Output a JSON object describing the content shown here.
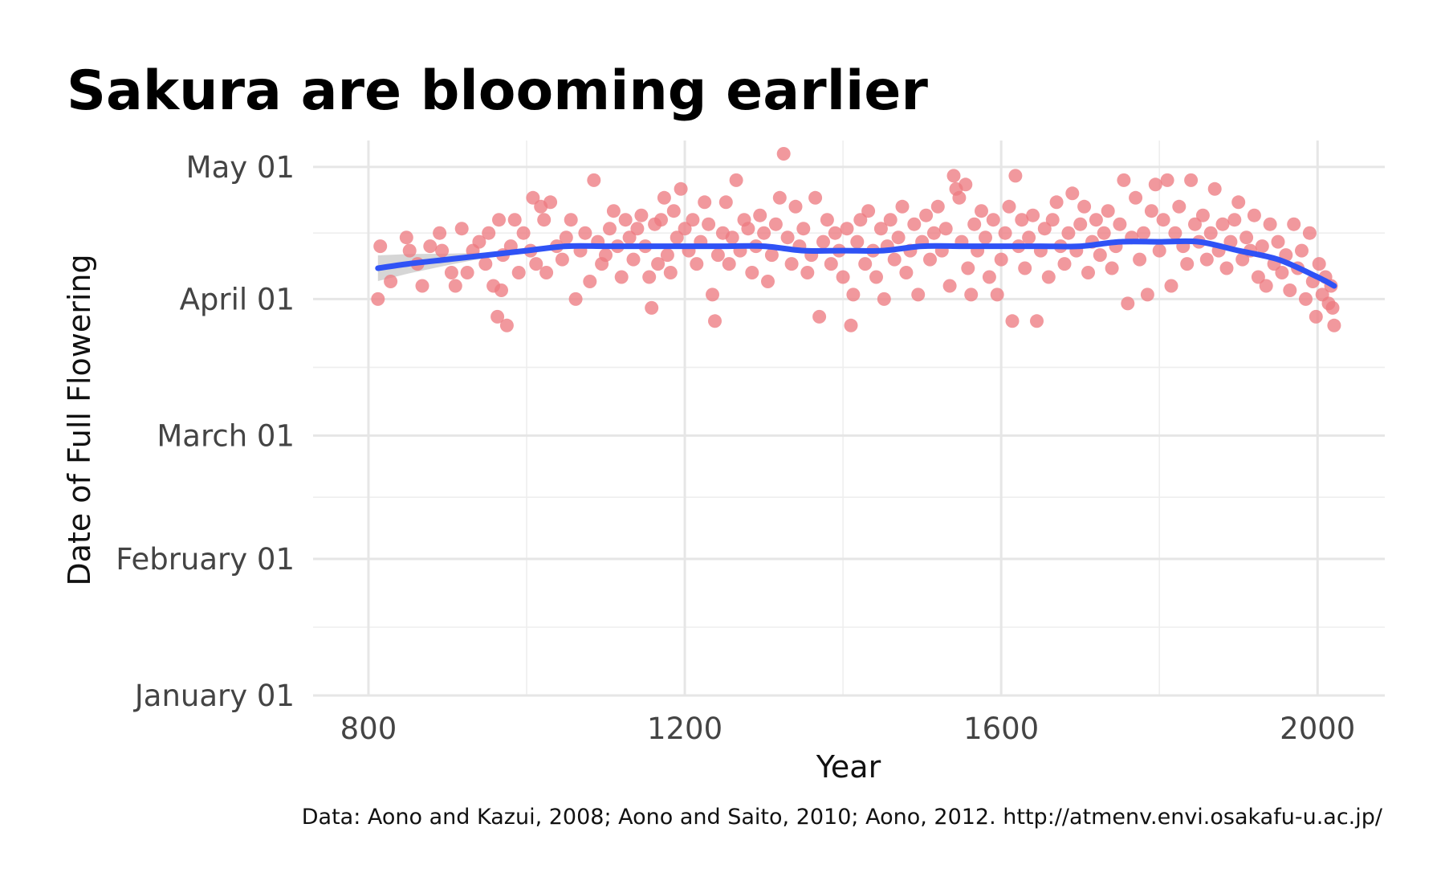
{
  "chart_data": {
    "type": "scatter",
    "title": "Sakura are blooming earlier",
    "xlabel": "Year",
    "ylabel": "Date of Full Flowering",
    "caption": "Data: Aono and Kazui, 2008; Aono and Saito, 2010; Aono, 2012. http://atmenv.envi.osakafu-u.ac.jp/",
    "xlim": [
      730,
      2085
    ],
    "ylim": [
      "2023-01-01",
      "2023-05-07"
    ],
    "x_ticks": [
      {
        "value": 800,
        "label": "800"
      },
      {
        "value": 1200,
        "label": "1200"
      },
      {
        "value": 1600,
        "label": "1600"
      },
      {
        "value": 2000,
        "label": "2000"
      }
    ],
    "y_ticks": [
      {
        "value": "2023-01-01",
        "label": "January 01"
      },
      {
        "value": "2023-02-01",
        "label": "February 01"
      },
      {
        "value": "2023-03-01",
        "label": "March 01"
      },
      {
        "value": "2023-04-01",
        "label": "April 01"
      },
      {
        "value": "2023-05-01",
        "label": "May 01"
      }
    ],
    "grid": true,
    "point_color": "#ED7B81",
    "smooth_color": "#2F52F5",
    "band_color": "#C8C8C8",
    "smooth": {
      "x": [
        812,
        850,
        900,
        950,
        1000,
        1050,
        1100,
        1150,
        1200,
        1250,
        1300,
        1350,
        1400,
        1450,
        1500,
        1550,
        1600,
        1650,
        1700,
        1750,
        1800,
        1850,
        1900,
        1950,
        2000,
        2021
      ],
      "y": [
        "2023-04-08",
        "2023-04-09",
        "2023-04-10",
        "2023-04-11",
        "2023-04-12",
        "2023-04-13",
        "2023-04-13",
        "2023-04-13",
        "2023-04-13",
        "2023-04-13",
        "2023-04-13",
        "2023-04-12",
        "2023-04-12",
        "2023-04-12",
        "2023-04-13",
        "2023-04-13",
        "2023-04-13",
        "2023-04-13",
        "2023-04-13",
        "2023-04-14",
        "2023-04-14",
        "2023-04-14",
        "2023-04-12",
        "2023-04-10",
        "2023-04-06",
        "2023-04-04"
      ]
    },
    "points": [
      [
        812,
        "2023-04-01"
      ],
      [
        815,
        "2023-04-13"
      ],
      [
        828,
        "2023-04-05"
      ],
      [
        848,
        "2023-04-15"
      ],
      [
        852,
        "2023-04-12"
      ],
      [
        862,
        "2023-04-09"
      ],
      [
        868,
        "2023-04-04"
      ],
      [
        878,
        "2023-04-13"
      ],
      [
        890,
        "2023-04-16"
      ],
      [
        893,
        "2023-04-12"
      ],
      [
        905,
        "2023-04-07"
      ],
      [
        910,
        "2023-04-04"
      ],
      [
        918,
        "2023-04-17"
      ],
      [
        925,
        "2023-04-07"
      ],
      [
        932,
        "2023-04-12"
      ],
      [
        940,
        "2023-04-14"
      ],
      [
        948,
        "2023-04-09"
      ],
      [
        952,
        "2023-04-16"
      ],
      [
        958,
        "2023-04-04"
      ],
      [
        963,
        "2023-03-28"
      ],
      [
        965,
        "2023-04-19"
      ],
      [
        968,
        "2023-04-03"
      ],
      [
        970,
        "2023-04-11"
      ],
      [
        975,
        "2023-03-26"
      ],
      [
        980,
        "2023-04-13"
      ],
      [
        985,
        "2023-04-19"
      ],
      [
        990,
        "2023-04-07"
      ],
      [
        996,
        "2023-04-16"
      ],
      [
        1005,
        "2023-04-12"
      ],
      [
        1008,
        "2023-04-24"
      ],
      [
        1012,
        "2023-04-09"
      ],
      [
        1018,
        "2023-04-22"
      ],
      [
        1022,
        "2023-04-19"
      ],
      [
        1025,
        "2023-04-07"
      ],
      [
        1030,
        "2023-04-23"
      ],
      [
        1038,
        "2023-04-13"
      ],
      [
        1045,
        "2023-04-10"
      ],
      [
        1050,
        "2023-04-15"
      ],
      [
        1056,
        "2023-04-19"
      ],
      [
        1062,
        "2023-04-01"
      ],
      [
        1068,
        "2023-04-12"
      ],
      [
        1074,
        "2023-04-16"
      ],
      [
        1080,
        "2023-04-05"
      ],
      [
        1085,
        "2023-04-28"
      ],
      [
        1090,
        "2023-04-14"
      ],
      [
        1095,
        "2023-04-09"
      ],
      [
        1100,
        "2023-04-11"
      ],
      [
        1105,
        "2023-04-17"
      ],
      [
        1110,
        "2023-04-21"
      ],
      [
        1115,
        "2023-04-13"
      ],
      [
        1120,
        "2023-04-06"
      ],
      [
        1125,
        "2023-04-19"
      ],
      [
        1130,
        "2023-04-15"
      ],
      [
        1135,
        "2023-04-10"
      ],
      [
        1140,
        "2023-04-17"
      ],
      [
        1145,
        "2023-04-20"
      ],
      [
        1150,
        "2023-04-13"
      ],
      [
        1155,
        "2023-04-06"
      ],
      [
        1158,
        "2023-03-30"
      ],
      [
        1162,
        "2023-04-18"
      ],
      [
        1166,
        "2023-04-09"
      ],
      [
        1170,
        "2023-04-19"
      ],
      [
        1174,
        "2023-04-24"
      ],
      [
        1178,
        "2023-04-11"
      ],
      [
        1182,
        "2023-04-07"
      ],
      [
        1186,
        "2023-04-21"
      ],
      [
        1190,
        "2023-04-15"
      ],
      [
        1195,
        "2023-04-26"
      ],
      [
        1200,
        "2023-04-17"
      ],
      [
        1205,
        "2023-04-12"
      ],
      [
        1210,
        "2023-04-19"
      ],
      [
        1215,
        "2023-04-09"
      ],
      [
        1220,
        "2023-04-14"
      ],
      [
        1225,
        "2023-04-23"
      ],
      [
        1230,
        "2023-04-18"
      ],
      [
        1235,
        "2023-04-02"
      ],
      [
        1238,
        "2023-03-27"
      ],
      [
        1242,
        "2023-04-11"
      ],
      [
        1248,
        "2023-04-16"
      ],
      [
        1252,
        "2023-04-23"
      ],
      [
        1256,
        "2023-04-09"
      ],
      [
        1260,
        "2023-04-15"
      ],
      [
        1265,
        "2023-04-28"
      ],
      [
        1270,
        "2023-04-12"
      ],
      [
        1275,
        "2023-04-19"
      ],
      [
        1280,
        "2023-04-17"
      ],
      [
        1285,
        "2023-04-07"
      ],
      [
        1290,
        "2023-04-13"
      ],
      [
        1295,
        "2023-04-20"
      ],
      [
        1300,
        "2023-04-16"
      ],
      [
        1305,
        "2023-04-05"
      ],
      [
        1310,
        "2023-04-11"
      ],
      [
        1315,
        "2023-04-18"
      ],
      [
        1320,
        "2023-04-24"
      ],
      [
        1325,
        "2023-05-04"
      ],
      [
        1330,
        "2023-04-15"
      ],
      [
        1335,
        "2023-04-09"
      ],
      [
        1340,
        "2023-04-22"
      ],
      [
        1345,
        "2023-04-13"
      ],
      [
        1350,
        "2023-04-17"
      ],
      [
        1355,
        "2023-04-07"
      ],
      [
        1360,
        "2023-04-11"
      ],
      [
        1365,
        "2023-04-24"
      ],
      [
        1370,
        "2023-03-28"
      ],
      [
        1375,
        "2023-04-14"
      ],
      [
        1380,
        "2023-04-19"
      ],
      [
        1385,
        "2023-04-09"
      ],
      [
        1390,
        "2023-04-16"
      ],
      [
        1395,
        "2023-04-12"
      ],
      [
        1400,
        "2023-04-06"
      ],
      [
        1405,
        "2023-04-17"
      ],
      [
        1410,
        "2023-03-26"
      ],
      [
        1413,
        "2023-04-02"
      ],
      [
        1418,
        "2023-04-14"
      ],
      [
        1422,
        "2023-04-19"
      ],
      [
        1428,
        "2023-04-09"
      ],
      [
        1432,
        "2023-04-21"
      ],
      [
        1438,
        "2023-04-12"
      ],
      [
        1442,
        "2023-04-06"
      ],
      [
        1448,
        "2023-04-17"
      ],
      [
        1452,
        "2023-04-01"
      ],
      [
        1456,
        "2023-04-13"
      ],
      [
        1460,
        "2023-04-19"
      ],
      [
        1465,
        "2023-04-10"
      ],
      [
        1470,
        "2023-04-15"
      ],
      [
        1475,
        "2023-04-22"
      ],
      [
        1480,
        "2023-04-07"
      ],
      [
        1485,
        "2023-04-12"
      ],
      [
        1490,
        "2023-04-18"
      ],
      [
        1495,
        "2023-04-02"
      ],
      [
        1500,
        "2023-04-14"
      ],
      [
        1505,
        "2023-04-20"
      ],
      [
        1510,
        "2023-04-10"
      ],
      [
        1515,
        "2023-04-16"
      ],
      [
        1520,
        "2023-04-22"
      ],
      [
        1525,
        "2023-04-12"
      ],
      [
        1530,
        "2023-04-17"
      ],
      [
        1535,
        "2023-04-04"
      ],
      [
        1540,
        "2023-04-29"
      ],
      [
        1543,
        "2023-04-26"
      ],
      [
        1547,
        "2023-04-24"
      ],
      [
        1550,
        "2023-04-14"
      ],
      [
        1555,
        "2023-04-27"
      ],
      [
        1558,
        "2023-04-08"
      ],
      [
        1562,
        "2023-04-02"
      ],
      [
        1566,
        "2023-04-18"
      ],
      [
        1570,
        "2023-04-12"
      ],
      [
        1575,
        "2023-04-21"
      ],
      [
        1580,
        "2023-04-15"
      ],
      [
        1585,
        "2023-04-06"
      ],
      [
        1590,
        "2023-04-19"
      ],
      [
        1595,
        "2023-04-02"
      ],
      [
        1600,
        "2023-04-10"
      ],
      [
        1605,
        "2023-04-16"
      ],
      [
        1610,
        "2023-04-22"
      ],
      [
        1614,
        "2023-03-27"
      ],
      [
        1618,
        "2023-04-29"
      ],
      [
        1622,
        "2023-04-13"
      ],
      [
        1626,
        "2023-04-19"
      ],
      [
        1630,
        "2023-04-08"
      ],
      [
        1635,
        "2023-04-15"
      ],
      [
        1640,
        "2023-04-20"
      ],
      [
        1645,
        "2023-03-27"
      ],
      [
        1650,
        "2023-04-12"
      ],
      [
        1655,
        "2023-04-17"
      ],
      [
        1660,
        "2023-04-06"
      ],
      [
        1665,
        "2023-04-19"
      ],
      [
        1670,
        "2023-04-23"
      ],
      [
        1675,
        "2023-04-13"
      ],
      [
        1680,
        "2023-04-09"
      ],
      [
        1685,
        "2023-04-16"
      ],
      [
        1690,
        "2023-04-25"
      ],
      [
        1695,
        "2023-04-12"
      ],
      [
        1700,
        "2023-04-18"
      ],
      [
        1705,
        "2023-04-22"
      ],
      [
        1710,
        "2023-04-07"
      ],
      [
        1715,
        "2023-04-14"
      ],
      [
        1720,
        "2023-04-19"
      ],
      [
        1725,
        "2023-04-11"
      ],
      [
        1730,
        "2023-04-16"
      ],
      [
        1735,
        "2023-04-21"
      ],
      [
        1740,
        "2023-04-08"
      ],
      [
        1745,
        "2023-04-13"
      ],
      [
        1750,
        "2023-04-18"
      ],
      [
        1755,
        "2023-04-28"
      ],
      [
        1760,
        "2023-03-31"
      ],
      [
        1765,
        "2023-04-15"
      ],
      [
        1770,
        "2023-04-24"
      ],
      [
        1775,
        "2023-04-10"
      ],
      [
        1780,
        "2023-04-16"
      ],
      [
        1785,
        "2023-04-02"
      ],
      [
        1790,
        "2023-04-21"
      ],
      [
        1795,
        "2023-04-27"
      ],
      [
        1800,
        "2023-04-12"
      ],
      [
        1805,
        "2023-04-19"
      ],
      [
        1810,
        "2023-04-28"
      ],
      [
        1815,
        "2023-04-04"
      ],
      [
        1820,
        "2023-04-16"
      ],
      [
        1825,
        "2023-04-22"
      ],
      [
        1830,
        "2023-04-13"
      ],
      [
        1835,
        "2023-04-09"
      ],
      [
        1840,
        "2023-04-28"
      ],
      [
        1845,
        "2023-04-18"
      ],
      [
        1850,
        "2023-04-14"
      ],
      [
        1855,
        "2023-04-20"
      ],
      [
        1860,
        "2023-04-10"
      ],
      [
        1865,
        "2023-04-16"
      ],
      [
        1870,
        "2023-04-26"
      ],
      [
        1875,
        "2023-04-12"
      ],
      [
        1880,
        "2023-04-18"
      ],
      [
        1885,
        "2023-04-08"
      ],
      [
        1890,
        "2023-04-14"
      ],
      [
        1895,
        "2023-04-19"
      ],
      [
        1900,
        "2023-04-23"
      ],
      [
        1905,
        "2023-04-10"
      ],
      [
        1910,
        "2023-04-15"
      ],
      [
        1915,
        "2023-04-12"
      ],
      [
        1920,
        "2023-04-20"
      ],
      [
        1925,
        "2023-04-06"
      ],
      [
        1930,
        "2023-04-13"
      ],
      [
        1935,
        "2023-04-04"
      ],
      [
        1940,
        "2023-04-18"
      ],
      [
        1945,
        "2023-04-09"
      ],
      [
        1950,
        "2023-04-14"
      ],
      [
        1955,
        "2023-04-07"
      ],
      [
        1960,
        "2023-04-11"
      ],
      [
        1965,
        "2023-04-03"
      ],
      [
        1970,
        "2023-04-18"
      ],
      [
        1975,
        "2023-04-08"
      ],
      [
        1980,
        "2023-04-12"
      ],
      [
        1985,
        "2023-04-01"
      ],
      [
        1990,
        "2023-04-16"
      ],
      [
        1994,
        "2023-04-05"
      ],
      [
        1998,
        "2023-03-28"
      ],
      [
        2002,
        "2023-04-09"
      ],
      [
        2006,
        "2023-04-02"
      ],
      [
        2010,
        "2023-04-06"
      ],
      [
        2014,
        "2023-03-31"
      ],
      [
        2017,
        "2023-04-04"
      ],
      [
        2019,
        "2023-03-30"
      ],
      [
        2021,
        "2023-03-26"
      ]
    ]
  }
}
